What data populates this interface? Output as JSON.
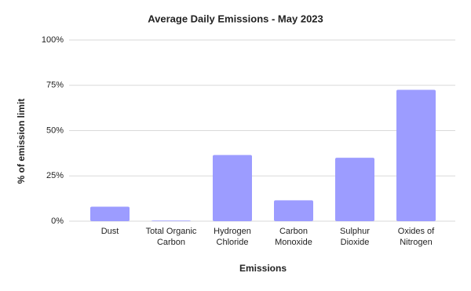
{
  "chart_data": {
    "type": "bar",
    "title": "Average Daily Emissions - May 2023",
    "x_label": "Emissions",
    "y_label": "% of emission limit",
    "categories": [
      "Dust",
      "Total Organic Carbon",
      "Hydrogen Chloride",
      "Carbon Monoxide",
      "Sulphur Dioxide",
      "Oxides of Nitrogen"
    ],
    "values": [
      8,
      0.3,
      36.5,
      11.5,
      35,
      72.5
    ],
    "color": "#9c9cff",
    "ylim": [
      0,
      100
    ],
    "yticks": [
      {
        "value": 0,
        "label": "0%"
      },
      {
        "value": 25,
        "label": "25%"
      },
      {
        "value": 50,
        "label": "50%"
      },
      {
        "value": 75,
        "label": "75%"
      },
      {
        "value": 100,
        "label": "100%"
      }
    ],
    "grid": true
  }
}
